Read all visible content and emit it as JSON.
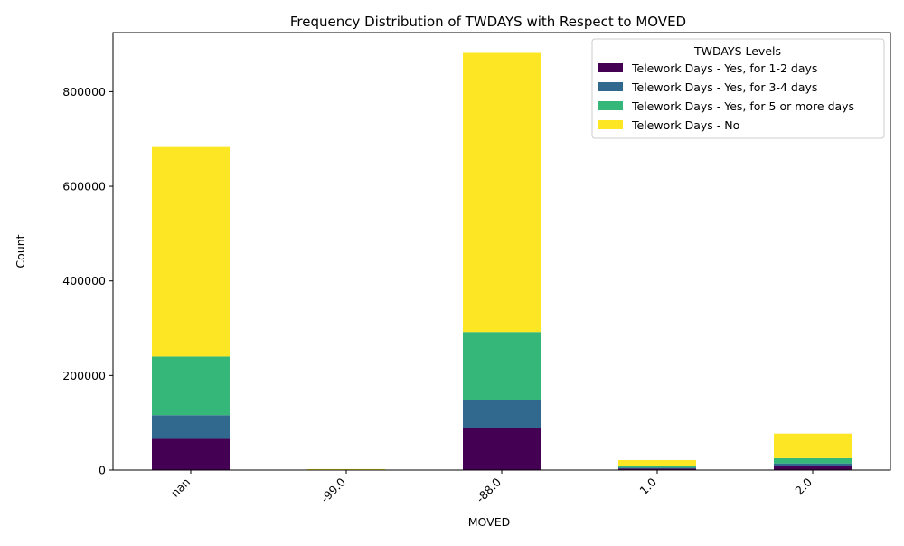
{
  "chart_data": {
    "type": "bar",
    "stacked": true,
    "title": "Frequency Distribution of TWDAYS with Respect to MOVED",
    "xlabel": "MOVED",
    "ylabel": "Count",
    "categories": [
      "nan",
      "-99.0",
      "-88.0",
      "1.0",
      "2.0"
    ],
    "ylim": [
      0,
      925000
    ],
    "yticks": [
      0,
      200000,
      400000,
      600000,
      800000
    ],
    "ytick_labels": [
      "0",
      "200000",
      "400000",
      "600000",
      "800000"
    ],
    "legend_title": "TWDAYS Levels",
    "legend_position": "top-right",
    "grid": false,
    "series": [
      {
        "name": "Telework Days - Yes, for 1-2 days",
        "color": "#440154",
        "values": [
          66000,
          300,
          88000,
          3000,
          9000
        ]
      },
      {
        "name": "Telework Days - Yes, for 3-4 days",
        "color": "#31688e",
        "values": [
          50000,
          100,
          60000,
          2000,
          5000
        ]
      },
      {
        "name": "Telework Days - Yes, for 5 or more days",
        "color": "#35b779",
        "values": [
          124000,
          200,
          144000,
          3000,
          11000
        ]
      },
      {
        "name": "Telework Days - No",
        "color": "#fde725",
        "values": [
          443000,
          1400,
          590000,
          13000,
          52000
        ]
      }
    ]
  }
}
